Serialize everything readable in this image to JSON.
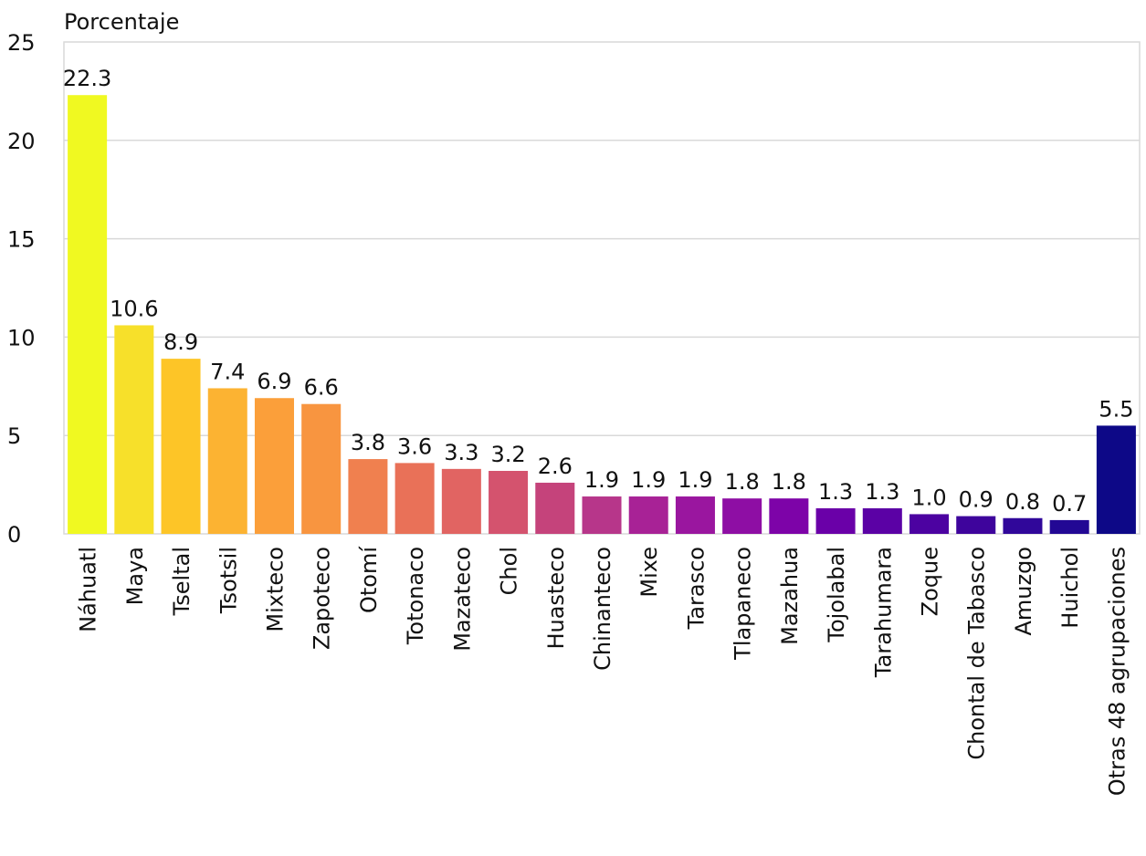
{
  "chart_data": {
    "type": "bar",
    "ylabel": "Porcentaje",
    "ylim": [
      0,
      25
    ],
    "yticks": [
      "0",
      "5",
      "10",
      "15",
      "20",
      "25"
    ],
    "grid": true,
    "categories": [
      "Náhuatl",
      "Maya",
      "Tseltal",
      "Tsotsil",
      "Mixteco",
      "Zapoteco",
      "Otomí",
      "Totonaco",
      "Mazateco",
      "Chol",
      "Huasteco",
      "Chinanteco",
      "Mixe",
      "Tarasco",
      "Tlapaneco",
      "Mazahua",
      "Tojolabal",
      "Tarahumara",
      "Zoque",
      "Chontal de Tabasco",
      "Amuzgo",
      "Huichol",
      "Otras 48 agrupaciones"
    ],
    "values": [
      22.3,
      10.6,
      8.9,
      7.4,
      6.9,
      6.6,
      3.8,
      3.6,
      3.3,
      3.2,
      2.6,
      1.9,
      1.9,
      1.9,
      1.8,
      1.8,
      1.3,
      1.3,
      1.0,
      0.9,
      0.8,
      0.7,
      5.5
    ],
    "value_labels": [
      "22.3",
      "10.6",
      "8.9",
      "7.4",
      "6.9",
      "6.6",
      "3.8",
      "3.6",
      "3.3",
      "3.2",
      "2.6",
      "1.9",
      "1.9",
      "1.9",
      "1.8",
      "1.8",
      "1.3",
      "1.3",
      "1.0",
      "0.9",
      "0.8",
      "0.7",
      "5.5"
    ],
    "colors": [
      "#f0f921",
      "#f7e02a",
      "#fdc527",
      "#fcb332",
      "#fb9f3a",
      "#f89540",
      "#f0804f",
      "#e97158",
      "#e16462",
      "#d4536e",
      "#c5437b",
      "#b7368a",
      "#a82296",
      "#9a169f",
      "#8e0ea4",
      "#7d03a8",
      "#6a00a8",
      "#5b01a5",
      "#4c02a1",
      "#3e049c",
      "#30079a",
      "#220894",
      "#0d0887"
    ]
  }
}
